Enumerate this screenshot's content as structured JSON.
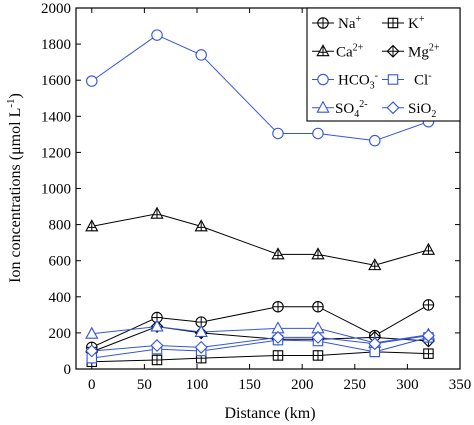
{
  "chart_data": {
    "type": "line",
    "xlabel": "Distance (km)",
    "ylabel": "Ion concentrations (μmol L",
    "ylabel_sup": "-1",
    "ylabel_end": ")",
    "xlim": [
      -15,
      350
    ],
    "ylim": [
      0,
      2000
    ],
    "xticks": [
      0,
      50,
      100,
      150,
      200,
      250,
      300,
      350
    ],
    "yticks": [
      0,
      200,
      400,
      600,
      800,
      1000,
      1200,
      1400,
      1600,
      1800,
      2000
    ],
    "grid": false,
    "legend_position": "top-right",
    "x": [
      0,
      62,
      104,
      177,
      215,
      269,
      320
    ],
    "series": [
      {
        "id": "na",
        "name": "Na",
        "sup": "+",
        "color": "#000000",
        "marker": "circle-plus",
        "values": [
          120,
          285,
          260,
          345,
          345,
          185,
          355
        ]
      },
      {
        "id": "k",
        "name": "K",
        "sup": "+",
        "color": "#000000",
        "marker": "square-plus",
        "values": [
          40,
          50,
          60,
          75,
          75,
          95,
          85
        ]
      },
      {
        "id": "ca",
        "name": "Ca",
        "sup": "2+",
        "color": "#000000",
        "marker": "triangle-plus",
        "values": [
          790,
          860,
          790,
          635,
          635,
          575,
          660
        ]
      },
      {
        "id": "mg",
        "name": "Mg",
        "sup": "2+",
        "color": "#000000",
        "marker": "diamond-plus",
        "values": [
          95,
          235,
          200,
          165,
          165,
          175,
          155
        ]
      },
      {
        "id": "hco3",
        "name": "HCO",
        "sub": "3",
        "sup": "-",
        "color": "#3355dd",
        "marker": "circle",
        "values": [
          1595,
          1850,
          1740,
          1305,
          1305,
          1265,
          1370
        ]
      },
      {
        "id": "cl",
        "name": "Cl",
        "sup": "-",
        "color": "#3355dd",
        "marker": "square",
        "values": [
          60,
          110,
          100,
          160,
          155,
          95,
          175
        ]
      },
      {
        "id": "so4",
        "name": "SO",
        "sub": "4",
        "sup": "2-",
        "color": "#3355dd",
        "marker": "triangle",
        "values": [
          195,
          235,
          205,
          225,
          225,
          145,
          190
        ]
      },
      {
        "id": "sio2",
        "name": "SiO",
        "sub": "2",
        "color": "#3355dd",
        "marker": "diamond",
        "values": [
          100,
          130,
          120,
          175,
          175,
          140,
          185
        ]
      }
    ]
  }
}
